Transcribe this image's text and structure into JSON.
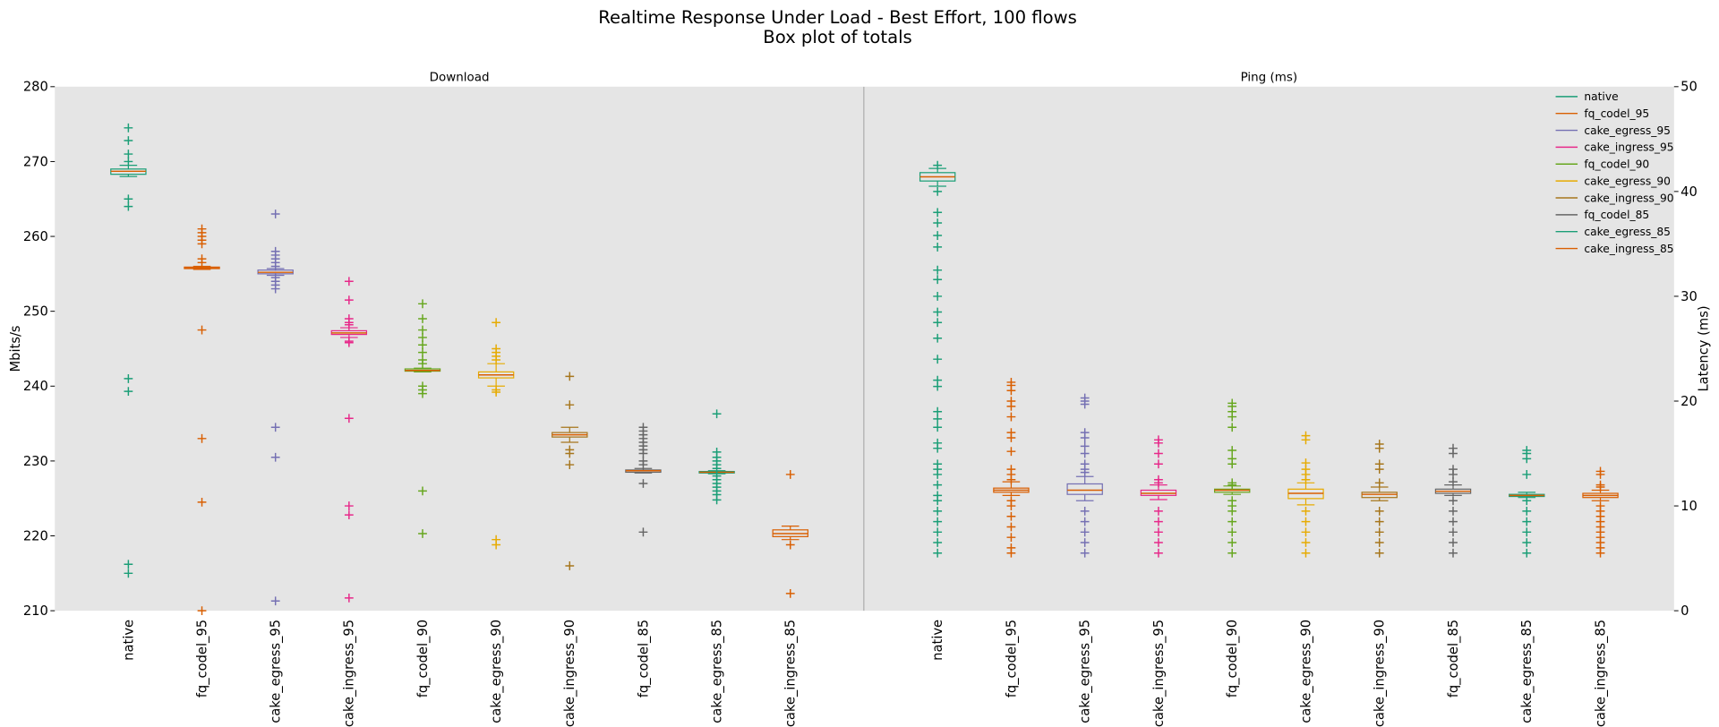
{
  "title": "Realtime Response Under Load - Best Effort, 100 flows",
  "subtitle": "Box plot of totals",
  "chart_data": [
    {
      "type": "box",
      "title": "Download",
      "ylabel": "Mbits/s",
      "yaxis": "left",
      "ylim": [
        210,
        280
      ],
      "yticks": [
        210,
        220,
        230,
        240,
        250,
        260,
        270,
        280
      ],
      "median_color": "#d95f02",
      "categories": [
        "native",
        "fq_codel_95",
        "cake_egress_95",
        "cake_ingress_95",
        "fq_codel_90",
        "cake_egress_90",
        "cake_ingress_90",
        "fq_codel_85",
        "cake_egress_85",
        "cake_ingress_85"
      ],
      "boxes": [
        {
          "color": "#1b9e77",
          "whislo": 268.0,
          "q1": 268.3,
          "med": 268.7,
          "q3": 269.0,
          "whishi": 269.5,
          "fliers": [
            274.5,
            272.8,
            271,
            270,
            265,
            264,
            241,
            239.3,
            216.2,
            215
          ]
        },
        {
          "color": "#d95f02",
          "whislo": 255.6,
          "q1": 255.7,
          "med": 255.8,
          "q3": 255.9,
          "whishi": 256.0,
          "fliers": [
            261,
            260.5,
            260,
            259.5,
            259,
            257,
            256.5,
            247.5,
            233,
            224.5,
            210
          ]
        },
        {
          "color": "#7570b3",
          "whislo": 254.8,
          "q1": 255.0,
          "med": 255.2,
          "q3": 255.5,
          "whishi": 255.7,
          "fliers": [
            263,
            258,
            257.5,
            257,
            256.5,
            256,
            254.5,
            254,
            253.5,
            253,
            234.5,
            230.5,
            211.3
          ]
        },
        {
          "color": "#e7298a",
          "whislo": 246.5,
          "q1": 246.9,
          "med": 247.1,
          "q3": 247.4,
          "whishi": 247.8,
          "fliers": [
            254,
            251.5,
            249,
            248.5,
            248.2,
            246,
            245.8,
            235.7,
            224,
            222.8,
            211.7
          ]
        },
        {
          "color": "#66a61e",
          "whislo": 241.9,
          "q1": 242.0,
          "med": 242.1,
          "q3": 242.3,
          "whishi": 242.4,
          "fliers": [
            251,
            249,
            247.5,
            246.5,
            245.5,
            244.5,
            243.5,
            243,
            240,
            239.5,
            239,
            226,
            220.3
          ]
        },
        {
          "color": "#e6ab02",
          "whislo": 240.0,
          "q1": 241.1,
          "med": 241.5,
          "q3": 241.9,
          "whishi": 243.0,
          "fliers": [
            248.5,
            245,
            244.5,
            244,
            243.5,
            239.5,
            239.2,
            219.5,
            218.8
          ]
        },
        {
          "color": "#a6761d",
          "whislo": 232.5,
          "q1": 233.2,
          "med": 233.5,
          "q3": 233.8,
          "whishi": 234.5,
          "fliers": [
            241.3,
            237.5,
            231.5,
            231,
            229.5,
            216
          ]
        },
        {
          "color": "#666666",
          "whislo": 228.4,
          "q1": 228.5,
          "med": 228.7,
          "q3": 228.8,
          "whishi": 229.0,
          "fliers": [
            234.5,
            234,
            233.5,
            233,
            232.5,
            232,
            231.5,
            231,
            230,
            229.5,
            227,
            220.5
          ]
        },
        {
          "color": "#1b9e77",
          "whislo": 228.3,
          "q1": 228.4,
          "med": 228.5,
          "q3": 228.6,
          "whishi": 228.7,
          "fliers": [
            236.3,
            231.2,
            230.5,
            230,
            229.5,
            229,
            228,
            227.5,
            227,
            226.5,
            226,
            225.5,
            224.8
          ]
        },
        {
          "color": "#d95f02",
          "whislo": 219.5,
          "q1": 219.9,
          "med": 220.3,
          "q3": 220.8,
          "whishi": 221.3,
          "fliers": [
            228.2,
            218.8,
            212.3
          ]
        }
      ]
    },
    {
      "type": "box",
      "title": "Ping (ms)",
      "ylabel": "Latency (ms)",
      "yaxis": "right",
      "ylim": [
        0,
        50
      ],
      "yticks": [
        0,
        10,
        20,
        30,
        40,
        50
      ],
      "median_color": "#d95f02",
      "legend_loc": "upper right",
      "legend_entries": [
        "native",
        "fq_codel_95",
        "cake_egress_95",
        "cake_ingress_95",
        "fq_codel_90",
        "cake_egress_90",
        "cake_ingress_90",
        "fq_codel_85",
        "cake_egress_85",
        "cake_ingress_85"
      ],
      "categories": [
        "native",
        "fq_codel_95",
        "cake_egress_95",
        "cake_ingress_95",
        "fq_codel_90",
        "cake_egress_90",
        "cake_ingress_90",
        "fq_codel_85",
        "cake_egress_85",
        "cake_ingress_85"
      ],
      "boxes": [
        {
          "color": "#1b9e77",
          "whislo": 40.5,
          "q1": 41.0,
          "med": 41.4,
          "q3": 41.8,
          "whishi": 42.2,
          "fliers": [
            42.5,
            40,
            38,
            37,
            35.8,
            34.7,
            32.5,
            31.6,
            30,
            28.5,
            27.5,
            26,
            24,
            22,
            21.4,
            19,
            18.3,
            17.5,
            16,
            15.5,
            14,
            13.5,
            13,
            12,
            11,
            10.5,
            9.5,
            8.5,
            7.5,
            6.5,
            5.5
          ]
        },
        {
          "color": "#d95f02",
          "whislo": 11.0,
          "q1": 11.3,
          "med": 11.5,
          "q3": 11.7,
          "whishi": 12.3,
          "fliers": [
            21.8,
            21.5,
            21,
            20,
            19.5,
            18.5,
            17,
            16.5,
            15.2,
            13.5,
            13,
            12.5,
            10.5,
            10,
            9,
            8,
            7,
            6,
            5.5
          ]
        },
        {
          "color": "#7570b3",
          "whislo": 10.5,
          "q1": 11.1,
          "med": 11.5,
          "q3": 12.1,
          "whishi": 12.8,
          "fliers": [
            20.3,
            20,
            19.7,
            17,
            16.5,
            15.7,
            15,
            14,
            13.5,
            13.2,
            9.5,
            8.5,
            7.5,
            6.5,
            5.5
          ]
        },
        {
          "color": "#e7298a",
          "whislo": 10.6,
          "q1": 11.0,
          "med": 11.2,
          "q3": 11.5,
          "whishi": 12.0,
          "fliers": [
            16.3,
            16,
            15,
            14,
            12.5,
            12.2,
            9.5,
            8.5,
            7.5,
            6.5,
            5.5
          ]
        },
        {
          "color": "#66a61e",
          "whislo": 11.1,
          "q1": 11.3,
          "med": 11.5,
          "q3": 11.6,
          "whishi": 11.9,
          "fliers": [
            19.8,
            19.5,
            19,
            18.5,
            17.5,
            15.3,
            14.5,
            14,
            12.2,
            12,
            10.5,
            10,
            9.5,
            8.5,
            7.5,
            6.5,
            5.5
          ]
        },
        {
          "color": "#e6ab02",
          "whislo": 10.1,
          "q1": 10.7,
          "med": 11.2,
          "q3": 11.6,
          "whishi": 12.2,
          "fliers": [
            16.7,
            16.3,
            14.1,
            13.5,
            13,
            12.5,
            9.5,
            8.5,
            7.5,
            6.5,
            5.5
          ]
        },
        {
          "color": "#a6761d",
          "whislo": 10.5,
          "q1": 10.8,
          "med": 11.1,
          "q3": 11.3,
          "whishi": 11.8,
          "fliers": [
            15.9,
            15.5,
            14,
            13.5,
            12.2,
            9.5,
            8.5,
            7.5,
            6.5,
            5.5
          ]
        },
        {
          "color": "#666666",
          "whislo": 11.0,
          "q1": 11.2,
          "med": 11.4,
          "q3": 11.6,
          "whishi": 12.0,
          "fliers": [
            15.5,
            15,
            13.5,
            13,
            12.3,
            10.5,
            9.5,
            8.5,
            7.5,
            6.5,
            5.5
          ]
        },
        {
          "color": "#1b9e77",
          "whislo": 10.8,
          "q1": 10.9,
          "med": 11.0,
          "q3": 11.1,
          "whishi": 11.3,
          "fliers": [
            15.3,
            15,
            14.5,
            13,
            10.5,
            9.5,
            8.5,
            7.5,
            6.5,
            5.5
          ]
        },
        {
          "color": "#d95f02",
          "whislo": 10.5,
          "q1": 10.8,
          "med": 11.0,
          "q3": 11.2,
          "whishi": 11.5,
          "fliers": [
            13.3,
            13,
            12,
            11.8,
            10,
            9.5,
            9,
            8.5,
            8,
            7.5,
            7,
            6.5,
            6,
            5.5
          ]
        }
      ]
    }
  ]
}
